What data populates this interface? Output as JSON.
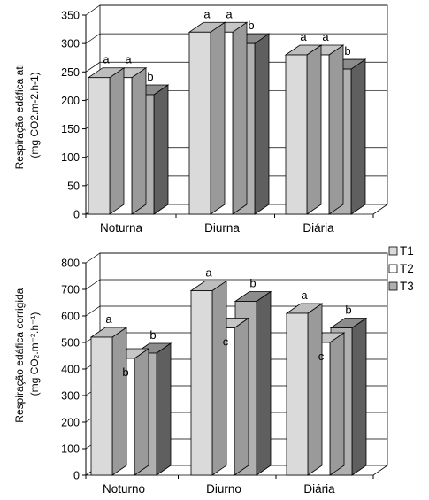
{
  "chart_data": [
    {
      "type": "bar",
      "style": "3d-clustered",
      "categories": [
        "Noturna",
        "Diurna",
        "Diária"
      ],
      "series": [
        {
          "name": "T1",
          "values": [
            240,
            320,
            280
          ],
          "labels": [
            "a",
            "a",
            "a"
          ]
        },
        {
          "name": "T2",
          "values": [
            240,
            320,
            280
          ],
          "labels": [
            "a",
            "a",
            "a"
          ]
        },
        {
          "name": "T3",
          "values": [
            210,
            300,
            255
          ],
          "labels": [
            "b",
            "b",
            "b"
          ]
        }
      ],
      "ylabel_lines": [
        "Respiração edáfica atı",
        "(mg CO2.m-2.h-1)"
      ],
      "ylim": [
        0,
        350
      ],
      "yticks": [
        0,
        50,
        100,
        150,
        200,
        250,
        300,
        350
      ],
      "grid": true,
      "legend": "none"
    },
    {
      "type": "bar",
      "style": "3d-clustered",
      "categories": [
        "Noturno",
        "Diurno",
        "Diária"
      ],
      "series": [
        {
          "name": "T1",
          "values": [
            520,
            695,
            610
          ],
          "labels": [
            "a",
            "a",
            "a"
          ]
        },
        {
          "name": "T2",
          "values": [
            440,
            555,
            500
          ],
          "labels": [
            "b",
            "c",
            "c"
          ]
        },
        {
          "name": "T3",
          "values": [
            460,
            655,
            555
          ],
          "labels": [
            "b",
            "b",
            "b"
          ]
        }
      ],
      "ylabel_lines": [
        "Respiração edáfica corrigida",
        "(mg CO₂.m⁻².h⁻¹)"
      ],
      "ylim": [
        0,
        800
      ],
      "yticks": [
        0,
        100,
        200,
        300,
        400,
        500,
        600,
        700,
        800
      ],
      "grid": true,
      "legend": "right"
    }
  ],
  "legend_items": [
    "T1",
    "T2",
    "T3"
  ],
  "colors": {
    "T1": {
      "front": "#dadada",
      "top": "#bdbdbd",
      "side": "#9a9a9a"
    },
    "T2": {
      "front": "#ffffff",
      "top": "#c6c6c6",
      "side": "#9a9a9a"
    },
    "T3": {
      "front": "#b0b0b0",
      "top": "#8c8c8c",
      "side": "#5f5f5f"
    }
  }
}
